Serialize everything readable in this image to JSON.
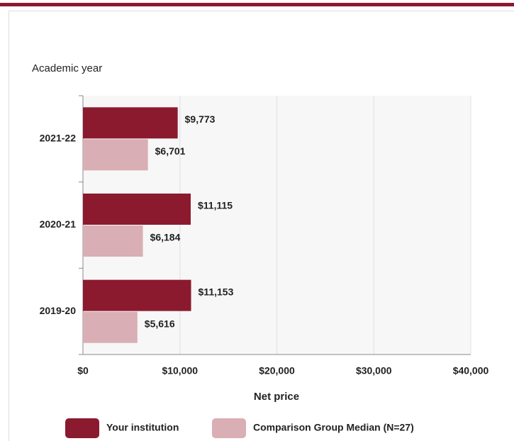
{
  "chart_data": {
    "type": "bar",
    "orientation": "horizontal",
    "y_label": "Academic year",
    "x_label": "Net price",
    "categories": [
      "2021-22",
      "2020-21",
      "2019-20"
    ],
    "series": [
      {
        "name": "Your institution",
        "color": "#8b1a2e",
        "values": [
          9773,
          11115,
          11153
        ],
        "value_labels": [
          "$9,773",
          "$11,115",
          "$11,153"
        ]
      },
      {
        "name": "Comparison Group Median (N=27)",
        "color": "#d9aeb4",
        "values": [
          6701,
          6184,
          5616
        ],
        "value_labels": [
          "$6,701",
          "$6,184",
          "$5,616"
        ]
      }
    ],
    "xlim": [
      0,
      40000
    ],
    "xticks": [
      {
        "value": 0,
        "label": "$0"
      },
      {
        "value": 10000,
        "label": "$10,000"
      },
      {
        "value": 20000,
        "label": "$20,000"
      },
      {
        "value": 30000,
        "label": "$30,000"
      },
      {
        "value": 40000,
        "label": "$40,000"
      }
    ],
    "grid": true
  }
}
